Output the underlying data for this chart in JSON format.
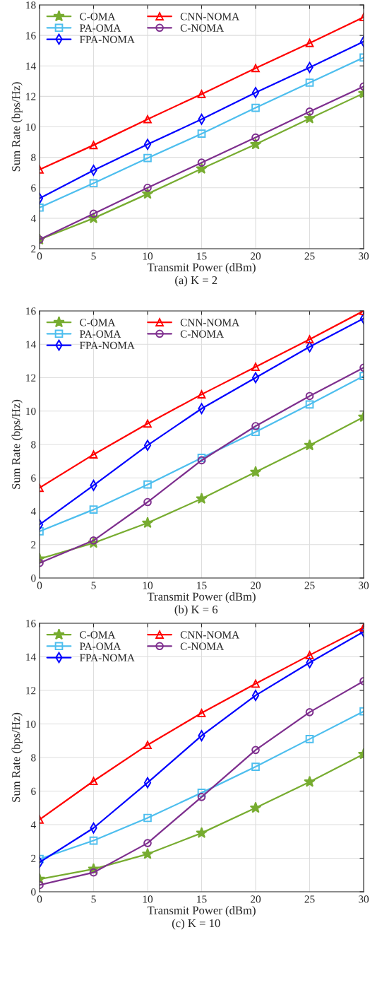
{
  "chart_data": [
    {
      "type": "line",
      "x": [
        0,
        5,
        10,
        15,
        20,
        25,
        30
      ],
      "xlabel": "Transmit Power (dBm)",
      "ylabel": "Sum Rate (bps/Hz)",
      "xlim": [
        0,
        30
      ],
      "xticks": [
        0,
        5,
        10,
        15,
        20,
        25,
        30
      ],
      "ylim": [
        2,
        18
      ],
      "yticks": [
        2,
        4,
        6,
        8,
        10,
        12,
        14,
        16,
        18
      ],
      "grid": true,
      "legend": "top left",
      "annotations": [
        "(a) K = 2"
      ],
      "series": [
        {
          "name": "C-OMA",
          "color": "#77ac30",
          "marker": "star",
          "values": [
            2.6,
            4.0,
            5.6,
            7.25,
            8.85,
            10.55,
            12.2
          ]
        },
        {
          "name": "PA-OMA",
          "color": "#4dbeee",
          "marker": "square",
          "values": [
            4.7,
            6.3,
            7.95,
            9.55,
            11.25,
            12.9,
            14.55
          ]
        },
        {
          "name": "FPA-NOMA",
          "color": "#0000ff",
          "marker": "diamond",
          "values": [
            5.3,
            7.15,
            8.85,
            10.5,
            12.25,
            13.9,
            15.6
          ]
        },
        {
          "name": "CNN-NOMA",
          "color": "#ff0000",
          "marker": "triangle",
          "values": [
            7.2,
            8.8,
            10.5,
            12.15,
            13.85,
            15.5,
            17.2
          ]
        },
        {
          "name": "C-NOMA",
          "color": "#7e2f8e",
          "marker": "circle",
          "values": [
            2.6,
            4.3,
            6.0,
            7.65,
            9.3,
            11.0,
            12.65
          ]
        }
      ]
    },
    {
      "type": "line",
      "x": [
        0,
        5,
        10,
        15,
        20,
        25,
        30
      ],
      "xlabel": "Transmit Power (dBm)",
      "ylabel": "Sum Rate (bps/Hz)",
      "xlim": [
        0,
        30
      ],
      "xticks": [
        0,
        5,
        10,
        15,
        20,
        25,
        30
      ],
      "ylim": [
        0,
        16
      ],
      "yticks": [
        0,
        2,
        4,
        6,
        8,
        10,
        12,
        14,
        16
      ],
      "grid": true,
      "legend": "top left",
      "annotations": [
        "(b) K = 6"
      ],
      "series": [
        {
          "name": "C-OMA",
          "color": "#77ac30",
          "marker": "star",
          "values": [
            1.15,
            2.1,
            3.3,
            4.75,
            6.35,
            7.95,
            9.65
          ]
        },
        {
          "name": "PA-OMA",
          "color": "#4dbeee",
          "marker": "square",
          "values": [
            2.8,
            4.1,
            5.6,
            7.2,
            8.75,
            10.4,
            12.1
          ]
        },
        {
          "name": "FPA-NOMA",
          "color": "#0000ff",
          "marker": "diamond",
          "values": [
            3.2,
            5.55,
            7.95,
            10.15,
            12.0,
            13.85,
            15.55
          ]
        },
        {
          "name": "CNN-NOMA",
          "color": "#ff0000",
          "marker": "triangle",
          "values": [
            5.4,
            7.4,
            9.25,
            11.0,
            12.65,
            14.3,
            16.0
          ]
        },
        {
          "name": "C-NOMA",
          "color": "#7e2f8e",
          "marker": "circle",
          "values": [
            0.9,
            2.25,
            4.55,
            7.05,
            9.1,
            10.9,
            12.6
          ]
        }
      ]
    },
    {
      "type": "line",
      "x": [
        0,
        5,
        10,
        15,
        20,
        25,
        30
      ],
      "xlabel": "Transmit Power (dBm)",
      "ylabel": "Sum Rate (bps/Hz)",
      "xlim": [
        0,
        30
      ],
      "xticks": [
        0,
        5,
        10,
        15,
        20,
        25,
        30
      ],
      "ylim": [
        0,
        16
      ],
      "yticks": [
        0,
        2,
        4,
        6,
        8,
        10,
        12,
        14,
        16
      ],
      "grid": true,
      "legend": "top left",
      "annotations": [
        "(c) K = 10"
      ],
      "series": [
        {
          "name": "C-OMA",
          "color": "#77ac30",
          "marker": "star",
          "values": [
            0.75,
            1.35,
            2.25,
            3.5,
            5.0,
            6.55,
            8.2
          ]
        },
        {
          "name": "PA-OMA",
          "color": "#4dbeee",
          "marker": "square",
          "values": [
            1.95,
            3.05,
            4.4,
            5.9,
            7.45,
            9.1,
            10.75
          ]
        },
        {
          "name": "FPA-NOMA",
          "color": "#0000ff",
          "marker": "diamond",
          "values": [
            1.75,
            3.8,
            6.5,
            9.3,
            11.7,
            13.65,
            15.5
          ]
        },
        {
          "name": "CNN-NOMA",
          "color": "#ff0000",
          "marker": "triangle",
          "values": [
            4.3,
            6.6,
            8.75,
            10.65,
            12.4,
            14.1,
            15.75
          ]
        },
        {
          "name": "C-NOMA",
          "color": "#7e2f8e",
          "marker": "circle",
          "values": [
            0.4,
            1.15,
            2.9,
            5.65,
            8.45,
            10.7,
            12.55
          ]
        }
      ]
    }
  ]
}
